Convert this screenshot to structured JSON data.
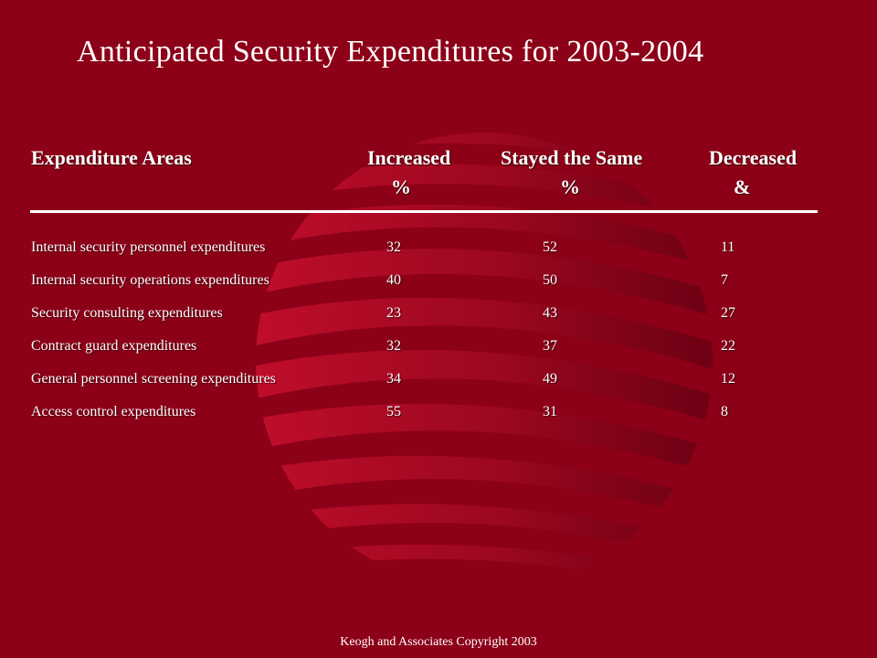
{
  "slide": {
    "title": "Anticipated Security Expenditures for 2003-2004",
    "footer": "Keogh and Associates Copyright 2003",
    "background_color": "#8c0018",
    "text_color": "#ffffff"
  },
  "table": {
    "headers": {
      "area": "Expenditure Areas",
      "increased": "Increased",
      "increased_unit": "%",
      "same": "Stayed the Same",
      "same_unit": "%",
      "decreased": "Decreased",
      "decreased_unit": "&"
    },
    "rows": [
      {
        "area": "Internal security personnel expenditures",
        "increased": "32",
        "same": "52",
        "decreased": "11"
      },
      {
        "area": "Internal security operations expenditures",
        "increased": "40",
        "same": "50",
        "decreased": "7"
      },
      {
        "area": "Security consulting expenditures",
        "increased": "23",
        "same": "43",
        "decreased": "27"
      },
      {
        "area": "Contract guard expenditures",
        "increased": "32",
        "same": "37",
        "decreased": "22"
      },
      {
        "area": "General personnel screening expenditures",
        "increased": "34",
        "same": "49",
        "decreased": "12"
      },
      {
        "area": "Access control expenditures",
        "increased": "55",
        "same": "31",
        "decreased": "8"
      }
    ]
  }
}
